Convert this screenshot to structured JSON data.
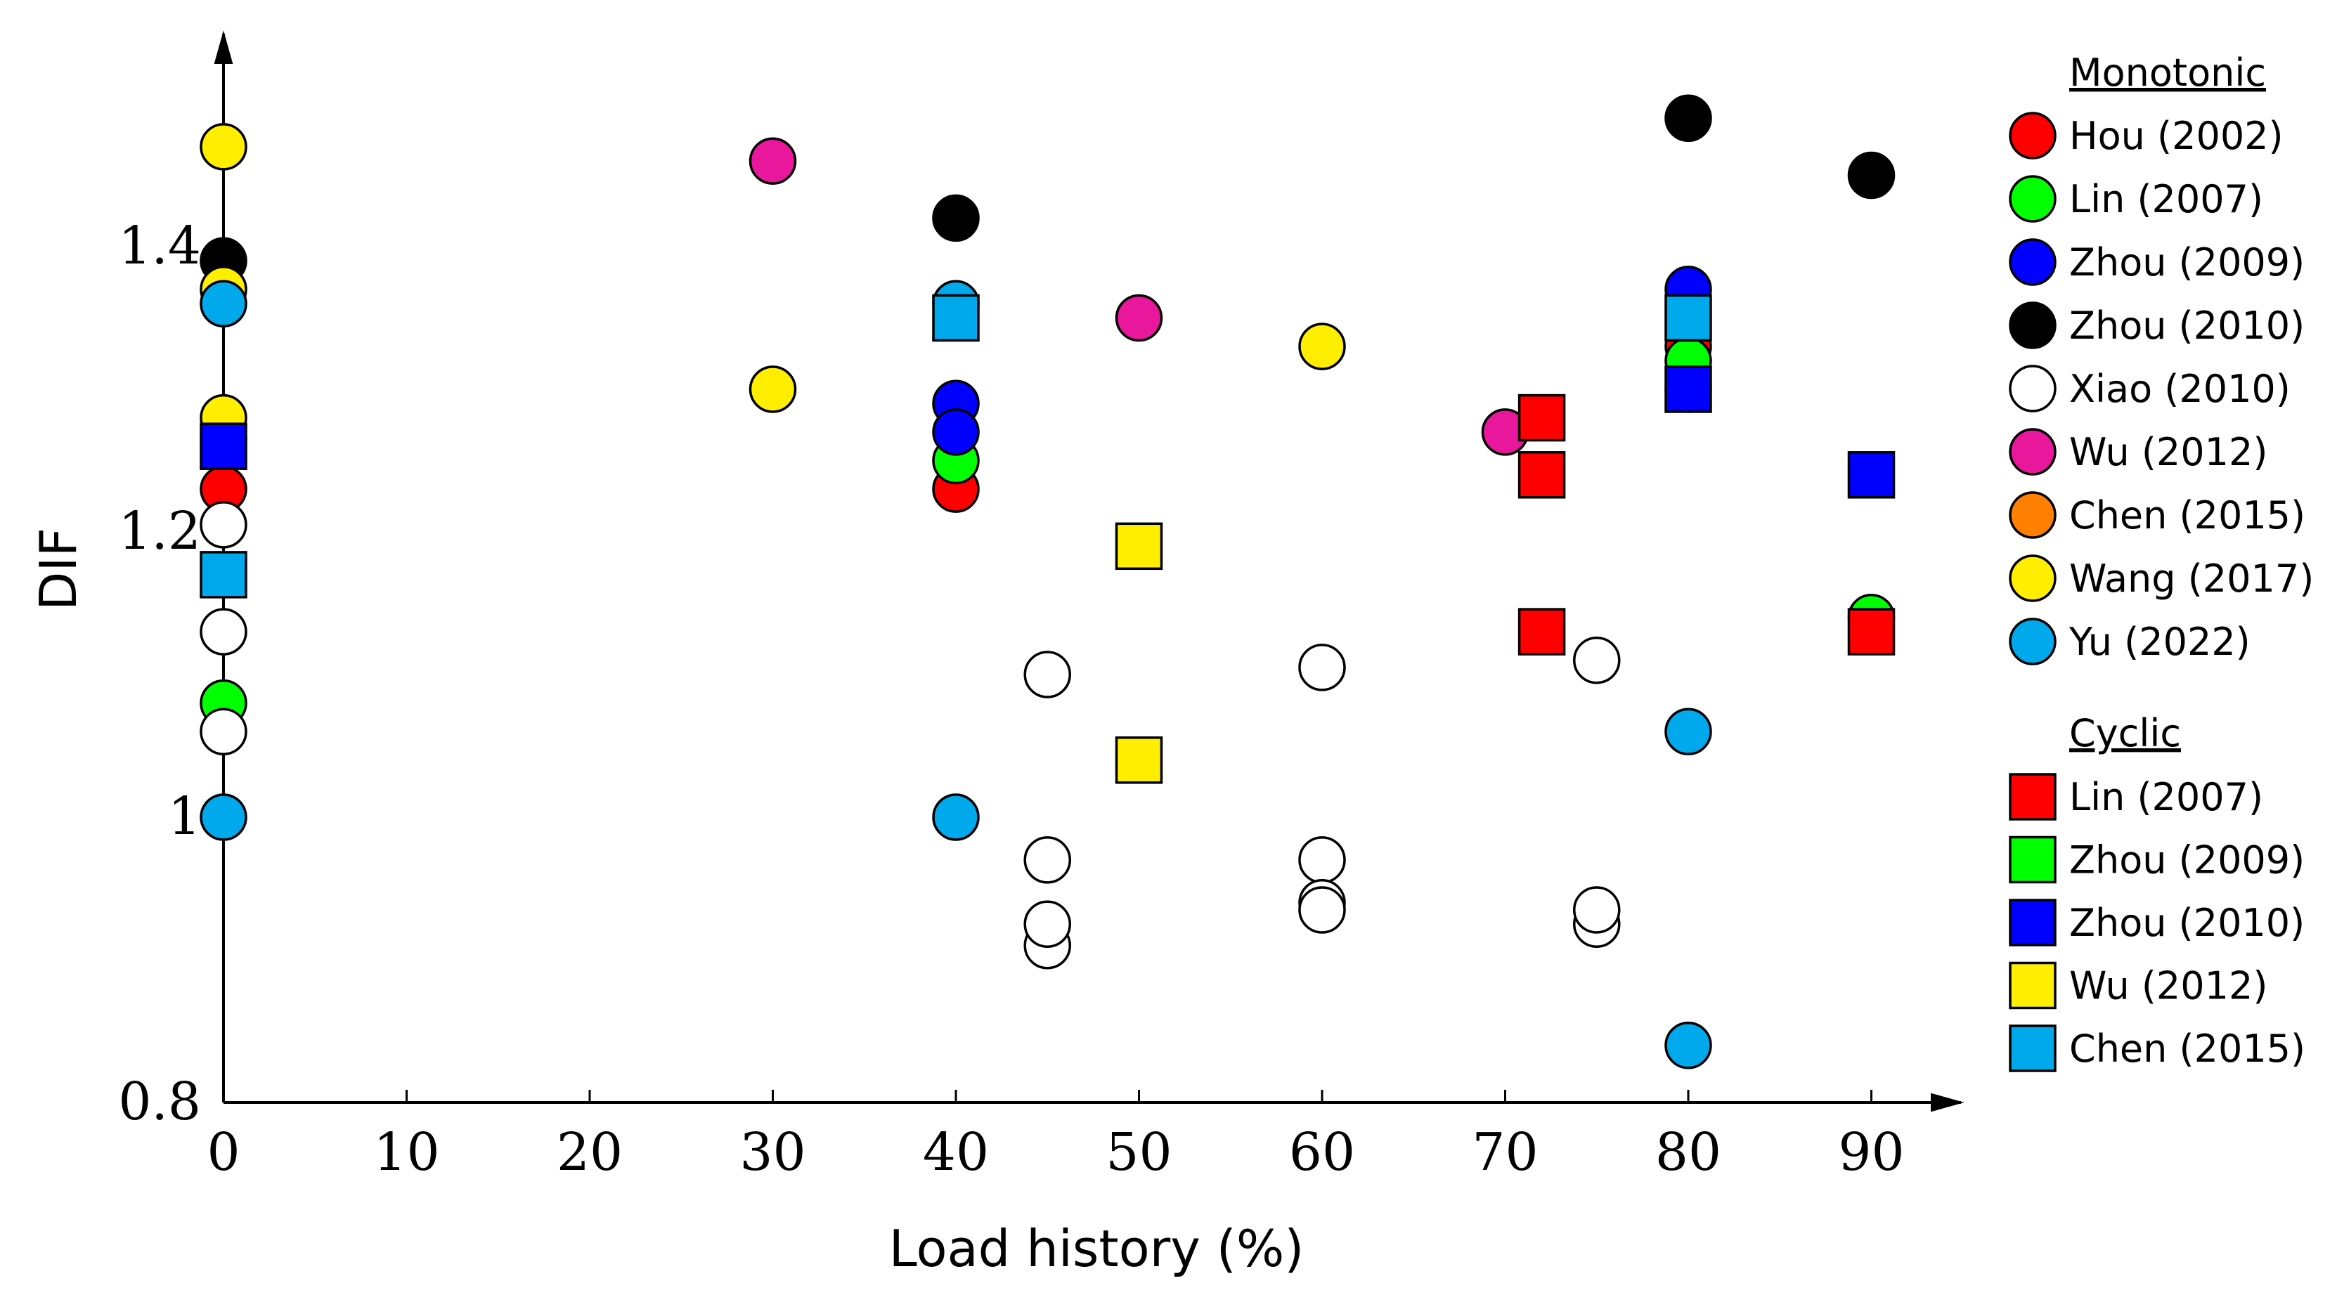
{
  "chart_data": {
    "type": "scatter",
    "xlabel": "Load history (%)",
    "ylabel": "DIF",
    "xlim": [
      0,
      95
    ],
    "ylim": [
      0.8,
      1.55
    ],
    "xticks": [
      0,
      10,
      20,
      30,
      40,
      50,
      60,
      70,
      80,
      90
    ],
    "yticks": [
      0.8,
      1,
      1.2,
      1.4
    ],
    "ytick_labels": [
      "0.8",
      "1",
      "1.2",
      "1.4"
    ],
    "grid": false,
    "legend_placement": "right",
    "legend": {
      "monotonic_title": "Monotonic",
      "cyclic_title": "Cyclic"
    },
    "series": [
      {
        "name": "Hou (2002)",
        "group": "monotonic",
        "marker": "circle",
        "color": "#ff0000",
        "points": [
          [
            0,
            1.23
          ],
          [
            40,
            1.23
          ],
          [
            80,
            1.33
          ]
        ]
      },
      {
        "name": "Lin (2007)",
        "group": "monotonic",
        "marker": "circle",
        "color": "#00ff00",
        "points": [
          [
            0,
            1.08
          ],
          [
            40,
            1.25
          ],
          [
            80,
            1.32
          ],
          [
            90,
            1.14
          ]
        ]
      },
      {
        "name": "Zhou (2009)",
        "group": "monotonic",
        "marker": "circle",
        "color": "#0000ff",
        "points": [
          [
            0,
            1.265
          ],
          [
            40,
            1.29
          ],
          [
            40,
            1.27
          ],
          [
            80,
            1.37
          ],
          [
            80,
            1.3
          ]
        ]
      },
      {
        "name": "Zhou (2010)",
        "group": "monotonic",
        "marker": "circle",
        "color": "#000000",
        "points": [
          [
            0,
            1.39
          ],
          [
            40,
            1.42
          ],
          [
            80,
            1.49
          ],
          [
            90,
            1.45
          ]
        ]
      },
      {
        "name": "Xiao (2010)",
        "group": "monotonic",
        "marker": "circle",
        "color": "#ffffff",
        "points": [
          [
            0,
            1.205
          ],
          [
            0,
            1.13
          ],
          [
            0,
            1.06
          ],
          [
            45,
            1.1
          ],
          [
            45,
            0.97
          ],
          [
            45,
            0.91
          ],
          [
            45,
            0.925
          ],
          [
            60,
            1.105
          ],
          [
            60,
            0.97
          ],
          [
            60,
            0.94
          ],
          [
            60,
            0.935
          ],
          [
            75,
            1.11
          ],
          [
            75,
            0.925
          ],
          [
            75,
            0.935
          ]
        ]
      },
      {
        "name": "Wu (2012)",
        "group": "monotonic",
        "marker": "circle",
        "color": "#e8179b",
        "points": [
          [
            30,
            1.46
          ],
          [
            50,
            1.35
          ],
          [
            70,
            1.27
          ]
        ]
      },
      {
        "name": "Chen (2015)",
        "group": "monotonic",
        "marker": "circle",
        "color": "#ff7f00",
        "points": []
      },
      {
        "name": "Wang (2017)",
        "group": "monotonic",
        "marker": "circle",
        "color": "#ffee00",
        "points": [
          [
            0,
            1.47
          ],
          [
            0,
            1.37
          ],
          [
            0,
            1.28
          ],
          [
            30,
            1.3
          ],
          [
            60,
            1.33
          ]
        ]
      },
      {
        "name": "Yu (2022)",
        "group": "monotonic",
        "marker": "circle",
        "color": "#00a8ec",
        "points": [
          [
            0,
            1.36
          ],
          [
            0,
            1.0
          ],
          [
            40,
            1.36
          ],
          [
            40,
            1.0
          ],
          [
            80,
            1.06
          ],
          [
            80,
            0.84
          ]
        ]
      },
      {
        "name": "Lin (2007)",
        "group": "cyclic",
        "marker": "square",
        "color": "#ff0000",
        "points": [
          [
            72,
            1.28
          ],
          [
            72,
            1.24
          ],
          [
            72,
            1.13
          ],
          [
            90,
            1.13
          ]
        ]
      },
      {
        "name": "Zhou (2009)",
        "group": "cyclic",
        "marker": "square",
        "color": "#00ff00",
        "points": []
      },
      {
        "name": "Zhou (2010)",
        "group": "cyclic",
        "marker": "square",
        "color": "#0000ff",
        "points": [
          [
            0,
            1.26
          ],
          [
            80,
            1.3
          ],
          [
            90,
            1.24
          ]
        ]
      },
      {
        "name": "Wu (2012)",
        "group": "cyclic",
        "marker": "square",
        "color": "#ffee00",
        "points": [
          [
            50,
            1.19
          ],
          [
            50,
            1.04
          ]
        ]
      },
      {
        "name": "Chen (2015)",
        "group": "cyclic",
        "marker": "square",
        "color": "#00a8ec",
        "points": [
          [
            0,
            1.17
          ],
          [
            40,
            1.35
          ],
          [
            80,
            1.35
          ]
        ]
      }
    ]
  }
}
